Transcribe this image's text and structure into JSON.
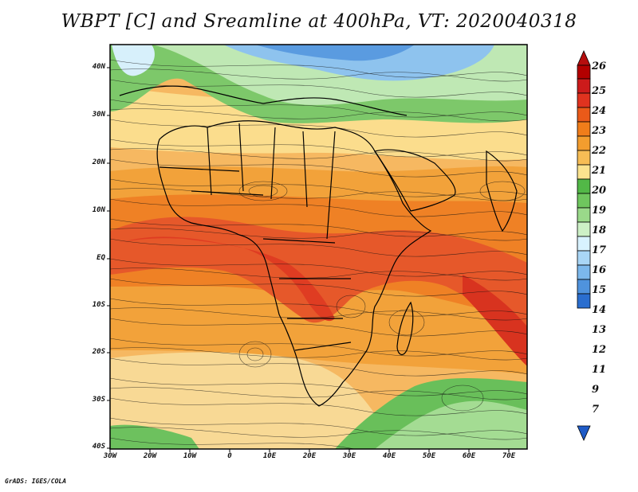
{
  "title": "WBPT [C] and Sreamline at 400hPa, VT: 2020040318",
  "footer": "GrADS: IGES/COLA",
  "map": {
    "lat_labels": [
      "40N",
      "30N",
      "20N",
      "10N",
      "EQ",
      "10S",
      "20S",
      "30S",
      "40S"
    ],
    "lon_labels": [
      "30W",
      "20W",
      "10W",
      "0",
      "10E",
      "20E",
      "30E",
      "40E",
      "50E",
      "60E",
      "70E"
    ]
  },
  "colorbar": {
    "labels": [
      "26",
      "25",
      "24",
      "23",
      "22",
      "21",
      "20",
      "19",
      "18",
      "17",
      "16",
      "15",
      "14",
      "13",
      "12",
      "11",
      "9",
      "7"
    ],
    "colors": {
      "top_arrow": "#b50e0e",
      "c26": "#b30000",
      "c25": "#cc1b1b",
      "c24": "#e0331f",
      "c23": "#ea5a19",
      "c22": "#f07d1a",
      "c21": "#f39d2e",
      "c20": "#f7bd55",
      "c19": "#fbe38f",
      "c18": "#52b847",
      "c17": "#6fc65e",
      "c16": "#9ad98a",
      "c15": "#cdf0c6",
      "c14": "#d8f2ff",
      "c13": "#a9d6f6",
      "c12": "#7cb8ec",
      "c11": "#4f93dd",
      "c9": "#2a6ecf",
      "bottom_arrow": "#1f5bc7"
    }
  }
}
